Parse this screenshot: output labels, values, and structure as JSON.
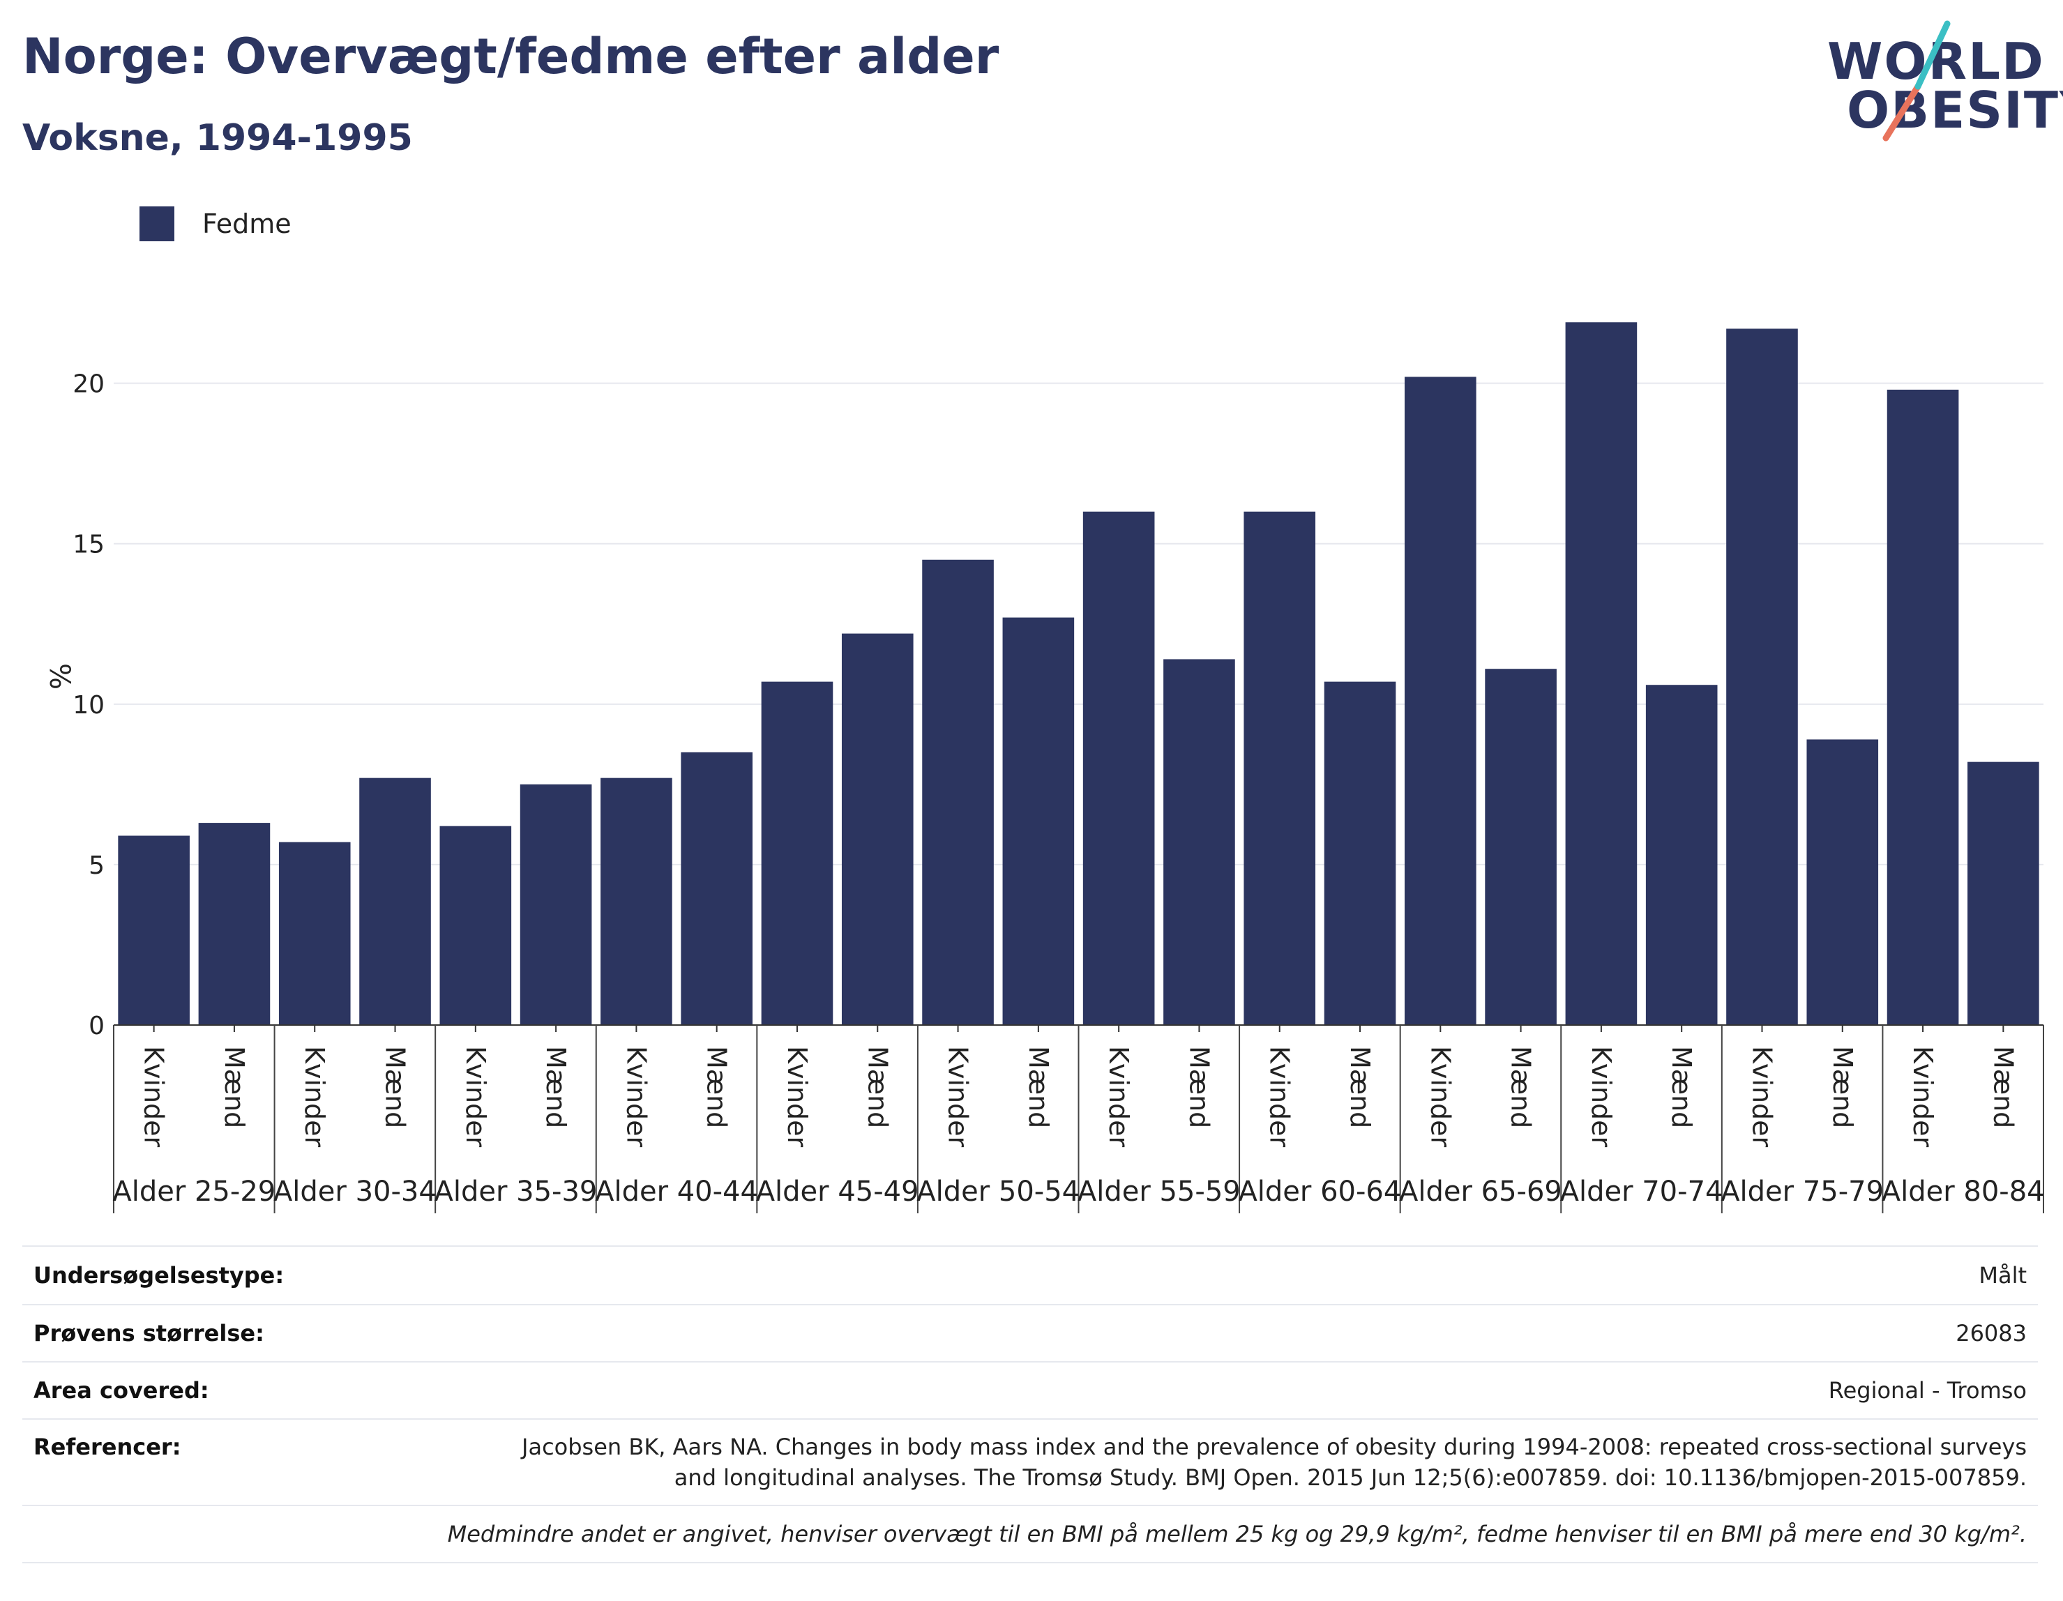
{
  "header": {
    "title": "Norge: Overvægt/fedme efter alder",
    "subtitle": "Voksne, 1994-1995"
  },
  "logo": {
    "line1": "WORLD",
    "line2": "OBESITY",
    "accent_colors": [
      "#3bbfc4",
      "#e8735c"
    ]
  },
  "legend": {
    "label": "Fedme",
    "color": "#2c3560"
  },
  "chart_data": {
    "type": "bar",
    "ylabel": "%",
    "ylim": [
      0,
      22.6
    ],
    "yticks": [
      0,
      5,
      10,
      15,
      20
    ],
    "grid": true,
    "legend_position": "top-left",
    "groups": [
      "Alder 25-29",
      "Alder 30-34",
      "Alder 35-39",
      "Alder 40-44",
      "Alder 45-49",
      "Alder 50-54",
      "Alder 55-59",
      "Alder 60-64",
      "Alder 65-69",
      "Alder 70-74",
      "Alder 75-79",
      "Alder 80-84"
    ],
    "subcategories": [
      "Kvinder",
      "Mænd"
    ],
    "series": [
      {
        "name": "Fedme",
        "color": "#2c3560",
        "values": [
          5.9,
          6.3,
          5.7,
          7.7,
          6.2,
          7.5,
          7.7,
          8.5,
          10.7,
          12.2,
          14.5,
          12.7,
          16.0,
          11.4,
          16.0,
          10.7,
          20.2,
          11.1,
          21.9,
          10.6,
          21.7,
          8.9,
          19.8,
          8.2
        ]
      }
    ]
  },
  "meta": {
    "survey_type_label": "Undersøgelsestype:",
    "survey_type_value": "Målt",
    "sample_size_label": "Prøvens størrelse:",
    "sample_size_value": "26083",
    "area_label": "Area covered:",
    "area_value": "Regional - Tromso",
    "references_label": "Referencer:",
    "references_line1": "Jacobsen BK, Aars NA. Changes in body mass index and the prevalence of obesity during 1994-2008: repeated cross-sectional surveys",
    "references_line2": "and longitudinal analyses. The Tromsø Study. BMJ Open. 2015 Jun 12;5(6):e007859. doi: 10.1136/bmjopen-2015-007859.",
    "footnote": "Medmindre andet er angivet, henviser overvægt til en BMI på mellem 25 kg og 29,9 kg/m², fedme henviser til en BMI på mere end 30 kg/m²."
  }
}
